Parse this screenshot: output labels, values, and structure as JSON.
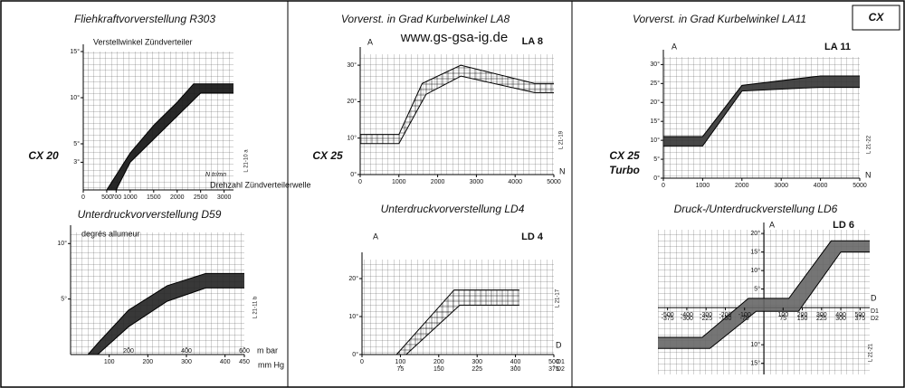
{
  "labels": {
    "cx20": "CX 20",
    "cx25": "CX 25",
    "cx25_turbo_1": "CX 25",
    "cx25_turbo_2": "Turbo",
    "cx": "CX",
    "website": "www.gs-gsa-ig.de"
  },
  "chart_data": [
    {
      "type": "line",
      "title": "Fliehkraftvorverstellung R303",
      "y_label": "Verstellwinkel Zündverteiler",
      "x_label": "Drehzahl Zündverteilerwelle",
      "unit": "N tr/mn",
      "code": "L 21-10 a",
      "xlim": [
        0,
        3200
      ],
      "ylim": [
        0,
        15
      ],
      "xticks": [
        0,
        500,
        700,
        1000,
        1500,
        2000,
        2500,
        3000
      ],
      "yticks": [
        {
          "value": 15,
          "label": "15°"
        },
        {
          "value": 10,
          "label": "10°"
        },
        {
          "value": 5,
          "label": "5°"
        },
        {
          "value": 3,
          "label": "3°"
        }
      ],
      "fill": "#111",
      "series": [
        {
          "color": "#000",
          "x": [
            700,
            1000,
            1500,
            2000,
            2500,
            3200
          ],
          "values": [
            0,
            3,
            5.5,
            8,
            10.5,
            10.5
          ]
        },
        {
          "color": "#000",
          "x": [
            500,
            1000,
            1500,
            2000,
            2350,
            3200
          ],
          "values": [
            0,
            4,
            7,
            9.5,
            11.5,
            11.5
          ]
        }
      ]
    },
    {
      "type": "line",
      "title": "Vorverst. in Grad Kurbelwinkel LA8",
      "y_label": "A",
      "x_label": "N",
      "tag": "LA 8",
      "code": "L 21-19",
      "xlim": [
        0,
        5000
      ],
      "ylim": [
        0,
        33
      ],
      "xticks": [
        0,
        1000,
        2000,
        3000,
        4000,
        5000
      ],
      "yticks": [
        {
          "value": 0,
          "label": "0°"
        },
        {
          "value": 10,
          "label": "10°"
        },
        {
          "value": 20,
          "label": "20°"
        },
        {
          "value": 30,
          "label": "30°"
        }
      ],
      "fill": "none",
      "series": [
        {
          "color": "#000",
          "x": [
            0,
            1000,
            1600,
            2600,
            4500,
            5000
          ],
          "values": [
            11,
            11,
            25,
            30,
            25,
            25
          ]
        },
        {
          "color": "#000",
          "x": [
            0,
            1000,
            1700,
            2600,
            4500,
            5000
          ],
          "values": [
            8.5,
            8.5,
            22,
            27,
            22.5,
            22.5
          ]
        }
      ]
    },
    {
      "type": "line",
      "title": "Vorverst. in Grad Kurbelwinkel LA11",
      "y_label": "A",
      "x_label": "N",
      "tag": "LA 11",
      "code": "L 21-22",
      "xlim": [
        0,
        5000
      ],
      "ylim": [
        0,
        32
      ],
      "xticks": [
        0,
        1000,
        2000,
        3000,
        4000,
        5000
      ],
      "yticks": [
        {
          "value": 0,
          "label": "0°"
        },
        {
          "value": 5,
          "label": "5°"
        },
        {
          "value": 10,
          "label": "10°"
        },
        {
          "value": 15,
          "label": "15°"
        },
        {
          "value": 20,
          "label": "20°"
        },
        {
          "value": 25,
          "label": "25°"
        },
        {
          "value": 30,
          "label": "30°"
        }
      ],
      "fill": "#333",
      "series": [
        {
          "color": "#000",
          "x": [
            0,
            1000,
            2000,
            4000,
            5000
          ],
          "values": [
            11,
            11,
            24.5,
            27,
            27
          ]
        },
        {
          "color": "#000",
          "x": [
            0,
            1000,
            2000,
            4000,
            5000
          ],
          "values": [
            8.5,
            8.5,
            23,
            24,
            24
          ]
        }
      ]
    },
    {
      "type": "line",
      "title": "Unterdruckvorverstellung D59",
      "y_label": "degrés allumeur",
      "x_label": "mm Hg",
      "x2_label": "m bar",
      "code": "L 21-11 b",
      "xlim": [
        0,
        450
      ],
      "ylim": [
        0,
        11
      ],
      "xticks": [
        100,
        200,
        300,
        400,
        450
      ],
      "x2lim": [
        0,
        600
      ],
      "x2ticks": [
        200,
        400,
        600
      ],
      "yticks": [
        {
          "value": 5,
          "label": "5°"
        },
        {
          "value": 10,
          "label": "10°"
        }
      ],
      "fill": "#222",
      "series": [
        {
          "color": "#000",
          "x": [
            45,
            70,
            150,
            250,
            350,
            450
          ],
          "values": [
            0,
            1,
            4,
            6.2,
            7.3,
            7.3
          ]
        },
        {
          "color": "#000",
          "x": [
            45,
            70,
            150,
            250,
            350,
            450
          ],
          "values": [
            0,
            0,
            2.5,
            4.8,
            6,
            6
          ]
        }
      ]
    },
    {
      "type": "line",
      "title": "Unterdruckvorverstellung LD4",
      "y_label": "A",
      "x_label": "D",
      "tag": "LD 4",
      "code": "L 21-17",
      "x1_name": "D1",
      "x2_name": "D2",
      "xlim": [
        0,
        500
      ],
      "ylim": [
        0,
        25
      ],
      "xticks": [
        0,
        100,
        200,
        300,
        400,
        500
      ],
      "x2lim": [
        0,
        375
      ],
      "x2ticks": [
        75,
        150,
        225,
        300,
        375
      ],
      "yticks": [
        {
          "value": 0,
          "label": "0°"
        },
        {
          "value": 10,
          "label": "10°"
        },
        {
          "value": 20,
          "label": "20°"
        }
      ],
      "fill": "none",
      "series": [
        {
          "color": "#000",
          "x": [
            90,
            240,
            410
          ],
          "values": [
            0,
            17,
            17
          ]
        },
        {
          "color": "#000",
          "x": [
            115,
            255,
            410
          ],
          "values": [
            0,
            13,
            13
          ]
        }
      ]
    },
    {
      "type": "line",
      "title": "Druck-/Unterdruckverstellung LD6",
      "y_label": "A",
      "x_label": "D",
      "tag": "LD 6",
      "code": "L 21-21",
      "x1_name": "D1",
      "x2_name": "D2",
      "xlim": [
        -550,
        550
      ],
      "ylim": [
        -18,
        21
      ],
      "xticks": [
        -500,
        -400,
        -300,
        -200,
        -100,
        100,
        200,
        300,
        400,
        500
      ],
      "x2lim": [
        -412.5,
        412.5
      ],
      "x2ticks": [
        -375,
        -300,
        -225,
        -150,
        -75,
        75,
        150,
        225,
        300,
        375
      ],
      "yticks": [
        {
          "value": 20,
          "label": "20°"
        },
        {
          "value": 15,
          "label": "15°"
        },
        {
          "value": 10,
          "label": "10°"
        },
        {
          "value": 5,
          "label": "5°"
        },
        {
          "value": -10,
          "label": "10°"
        },
        {
          "value": -15,
          "label": "15°"
        }
      ],
      "fill": "#666",
      "series": [
        {
          "color": "#000",
          "x": [
            -550,
            -320,
            -80,
            130,
            350,
            550
          ],
          "values": [
            -8,
            -8,
            2.5,
            2.5,
            18,
            18
          ]
        },
        {
          "color": "#000",
          "x": [
            -550,
            -280,
            -40,
            180,
            400,
            550
          ],
          "values": [
            -11,
            -11,
            -1,
            -1,
            15,
            15
          ]
        }
      ]
    }
  ]
}
